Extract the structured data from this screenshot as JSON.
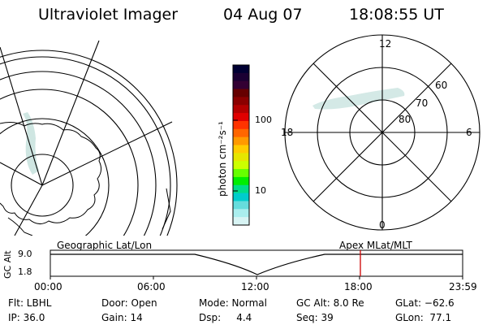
{
  "header": {
    "title": "Ultraviolet Imager",
    "date": "04 Aug 07",
    "time": "18:08:55 UT"
  },
  "colorbar": {
    "unit_label": "photon cm⁻²s⁻¹",
    "tick_labels": [
      "100",
      "10"
    ],
    "colors": [
      "#000033",
      "#1a0033",
      "#330033",
      "#660000",
      "#8b0000",
      "#b30000",
      "#e00000",
      "#ff3300",
      "#ff6600",
      "#ff9900",
      "#ffcc00",
      "#e6e600",
      "#ccff00",
      "#66ff00",
      "#00ee00",
      "#00dd88",
      "#00cccc",
      "#66dddd",
      "#aaeeee",
      "#d8f4f4"
    ]
  },
  "polar_plot": {
    "mlt_labels": {
      "top": "12",
      "bottom": "0",
      "left": "18",
      "right": "6"
    },
    "lat_labels": [
      "60",
      "70",
      "80"
    ]
  },
  "timeline": {
    "left_title": "Geographic Lat/Lon",
    "right_title": "Apex  MLat/MLT",
    "y_axis_label": "GC Alt",
    "y_ticks": [
      "9.0",
      "1.8"
    ],
    "x_ticks": [
      "00:00",
      "06:00",
      "12:00",
      "18:00",
      "23:59"
    ],
    "marker_time": "18:08:55",
    "marker_color": "#cc0000"
  },
  "info": {
    "filter": "Flt: LBHL",
    "ip": "IP: 36.0",
    "door": "Door: Open",
    "gain": "Gain: 14",
    "mode": "Mode: Normal",
    "dsp": "Dsp:     4.4",
    "gc_alt": "GC Alt: 8.0 Re",
    "seq": "Seq: 39",
    "glat": "GLat: −62.6",
    "glon": "GLon:  77.1"
  }
}
